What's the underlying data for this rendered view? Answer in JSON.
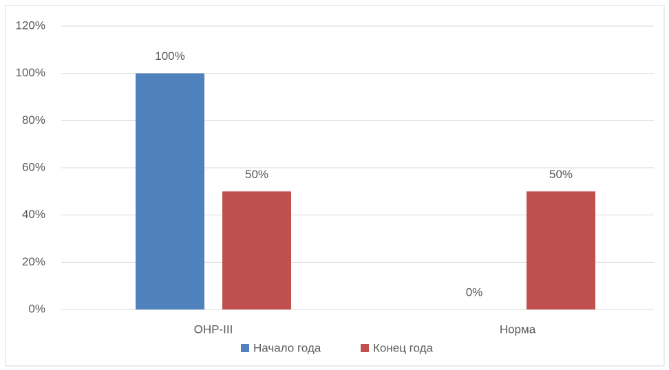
{
  "chart_data": {
    "type": "bar",
    "categories": [
      "ОНР-III",
      "Норма"
    ],
    "series": [
      {
        "name": "Начало года",
        "color": "#4f81bd",
        "values": [
          100,
          0
        ],
        "value_labels": [
          "100%",
          "0%"
        ]
      },
      {
        "name": "Конец года",
        "color": "#c0504d",
        "values": [
          50,
          50
        ],
        "value_labels": [
          "50%",
          "50%"
        ]
      }
    ],
    "ylim": [
      0,
      120
    ],
    "yticks": [
      {
        "value": 0,
        "label": "0%"
      },
      {
        "value": 20,
        "label": "20%"
      },
      {
        "value": 40,
        "label": "40%"
      },
      {
        "value": 60,
        "label": "60%"
      },
      {
        "value": 80,
        "label": "80%"
      },
      {
        "value": 100,
        "label": "100%"
      },
      {
        "value": 120,
        "label": "120%"
      }
    ],
    "grid": true,
    "legend": "bottom"
  }
}
